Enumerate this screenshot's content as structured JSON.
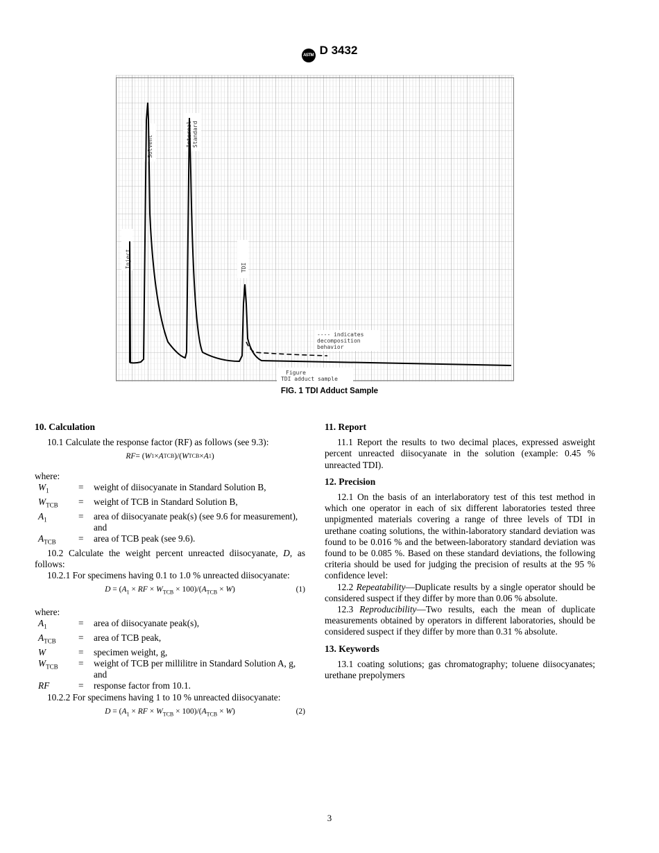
{
  "header": {
    "logo_text": "ASTM",
    "designation": "D 3432"
  },
  "figure": {
    "labels": {
      "inject": "Inject",
      "solvent": "Solvent",
      "internal_standard_1": "Internal",
      "internal_standard_2": "Standard",
      "tdi": "TDI",
      "legend_1": "---- indicates",
      "legend_2": "decomposition",
      "legend_3": "behavior",
      "figure_1": "Figure",
      "figure_2": "TDI adduct sample"
    },
    "caption": "FIG. 1 TDI Adduct Sample"
  },
  "calc": {
    "heading": "10. Calculation",
    "p10_1": "10.1 Calculate the response factor (RF) as follows (see 9.3):",
    "eq_rf": [
      {
        "t": "RF",
        "i": true
      },
      {
        "t": " = ("
      },
      {
        "t": "W",
        "i": true
      },
      {
        "t": "1",
        "s": true
      },
      {
        "t": " × "
      },
      {
        "t": "A",
        "i": true
      },
      {
        "t": "TCB",
        "s": true
      },
      {
        "t": ")/("
      },
      {
        "t": "W",
        "i": true
      },
      {
        "t": "TCB",
        "s": true
      },
      {
        "t": " × "
      },
      {
        "t": "A",
        "i": true
      },
      {
        "t": "1",
        "s": true
      },
      {
        "t": ")"
      }
    ],
    "where": "where:",
    "defs1": [
      {
        "sym": "W",
        "sub": "1",
        "desc": "weight of diisocyanate in Standard Solution B,"
      },
      {
        "sym": "W",
        "sub": "TCB",
        "desc": "weight of TCB in Standard Solution B,"
      },
      {
        "sym": "A",
        "sub": "1",
        "desc": "area of diisocyanate peak(s) (see 9.6 for measurement), and"
      },
      {
        "sym": "A",
        "sub": "TCB",
        "desc": "area of TCB peak (see 9.6)."
      }
    ],
    "p10_2": "10.2 Calculate the weight percent unreacted diisocyanate,",
    "p10_2b_var": "D",
    "p10_2b": ", as follows:",
    "p10_2_1": "10.2.1 For specimens having 0.1 to 1.0 % unreacted diisocyanate:",
    "eq_d": [
      {
        "t": "D",
        "i": true
      },
      {
        "t": " = ("
      },
      {
        "t": "A",
        "i": true
      },
      {
        "t": "1",
        "s": true
      },
      {
        "t": " × "
      },
      {
        "t": "RF",
        "i": true
      },
      {
        "t": " × "
      },
      {
        "t": "W",
        "i": true
      },
      {
        "t": "TCB",
        "s": true
      },
      {
        "t": " × 100)/("
      },
      {
        "t": "A",
        "i": true
      },
      {
        "t": "TCB",
        "s": true
      },
      {
        "t": " × "
      },
      {
        "t": "W",
        "i": true
      },
      {
        "t": ")"
      }
    ],
    "eq1_num": "(1)",
    "defs2": [
      {
        "sym": "A",
        "sub": "1",
        "desc": "area of diisocyanate peak(s),"
      },
      {
        "sym": "A",
        "sub": "TCB",
        "desc": "area of TCB peak,"
      },
      {
        "sym": "W",
        "sub": "",
        "desc": "specimen weight, g,"
      },
      {
        "sym": "W",
        "sub": "TCB",
        "desc": "weight of TCB per millilitre in Standard Solution A, g, and"
      },
      {
        "sym": "RF",
        "sub": "",
        "desc": "response factor from 10.1."
      }
    ],
    "p10_2_2": "10.2.2 For specimens having 1 to 10 % unreacted diisocyanate:",
    "eq2_num": "(2)",
    "eq_sign": "="
  },
  "report": {
    "heading": "11. Report",
    "p11_1": "11.1 Report the results to two decimal places, expressed asweight percent unreacted diisocyanate in the solution (example: 0.45 % unreacted TDI)."
  },
  "precision": {
    "heading": "12. Precision",
    "p12_1": "12.1 On the basis of an interlaboratory test of this test method in which one operator in each of six different laboratories tested three unpigmented materials covering a range of three levels of TDI in urethane coating solutions, the within-laboratory standard deviation was found to be 0.016 % and the between-laboratory standard deviation was found to be 0.085 %. Based on these standard deviations, the following criteria should be used for judging the precision of results at the 95 % confidence level:",
    "p12_2_num": "12.2 ",
    "p12_2_term": "Repeatability",
    "p12_2": "—Duplicate results by a single operator should be considered suspect if they differ by more than 0.06 % absolute.",
    "p12_3_num": "12.3 ",
    "p12_3_term": "Reproducibility",
    "p12_3": "—Two results, each the mean of duplicate measurements obtained by operators in different laboratories, should be considered suspect if they differ by more than 0.31 % absolute."
  },
  "keywords": {
    "heading": "13. Keywords",
    "p13_1": "13.1 coating solutions; gas chromatography; toluene diisocyanates; urethane prepolymers"
  },
  "page_number": "3"
}
